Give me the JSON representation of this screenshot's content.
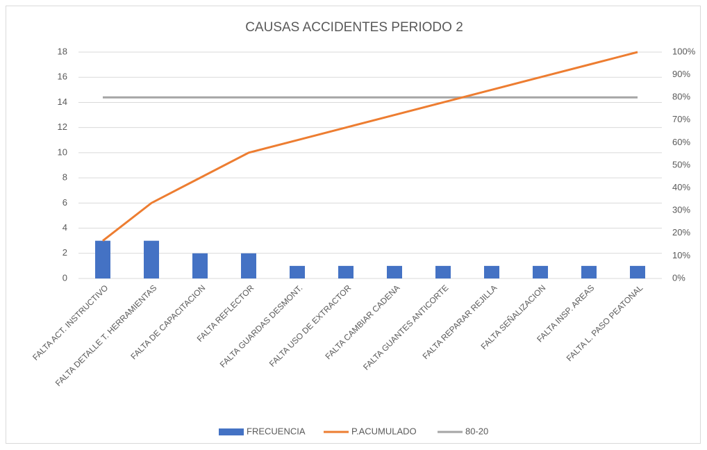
{
  "chart_data": {
    "type": "pareto",
    "title": "CAUSAS ACCIDENTES PERIODO 2",
    "categories": [
      "FALTA ACT. INSTRUCTIVO",
      "FALTA DETALLE T. HERRAMIENTAS",
      "FALTA DE CAPACITACION",
      "FALTA REFLECTOR",
      "FALTA GUARDAS DESMONT.",
      "FALTA USO DE EXTRACTOR",
      "FALTA CAMBIAR CADENA",
      "FALTA GUANTES ANTICORTE",
      "FALTA REPARAR REJILLA",
      "FALTA SEÑALIZACION",
      "FALTA INSP. AREAS",
      "FALTA L. PASO PEATONAL"
    ],
    "series": [
      {
        "name": "FRECUENCIA",
        "kind": "bar",
        "color": "#4472c4",
        "values": [
          3,
          3,
          2,
          2,
          1,
          1,
          1,
          1,
          1,
          1,
          1,
          1
        ]
      },
      {
        "name": "P.ACUMULADO",
        "kind": "line",
        "axis": "y2",
        "color": "#ed7d31",
        "values": [
          16.67,
          33.33,
          44.44,
          55.56,
          61.11,
          66.67,
          72.22,
          77.78,
          83.33,
          88.89,
          94.44,
          100
        ]
      },
      {
        "name": "80-20",
        "kind": "line",
        "axis": "y2",
        "color": "#a5a5a5",
        "values": [
          80,
          80,
          80,
          80,
          80,
          80,
          80,
          80,
          80,
          80,
          80,
          80
        ]
      }
    ],
    "ylim": [
      0,
      18
    ],
    "yticks": [
      0,
      2,
      4,
      6,
      8,
      10,
      12,
      14,
      16,
      18
    ],
    "y2lim": [
      0,
      100
    ],
    "y2ticks": [
      {
        "value": 0,
        "label": "0%"
      },
      {
        "value": 10,
        "label": "10%"
      },
      {
        "value": 20,
        "label": "20%"
      },
      {
        "value": 30,
        "label": "30%"
      },
      {
        "value": 40,
        "label": "40%"
      },
      {
        "value": 50,
        "label": "50%"
      },
      {
        "value": 60,
        "label": "60%"
      },
      {
        "value": 70,
        "label": "70%"
      },
      {
        "value": 80,
        "label": "80%"
      },
      {
        "value": 90,
        "label": "90%"
      },
      {
        "value": 100,
        "label": "100%"
      }
    ],
    "grid": true,
    "legend": "bottom"
  }
}
